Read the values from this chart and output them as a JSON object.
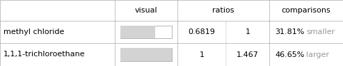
{
  "rows": [
    {
      "name": "methyl chloride",
      "ratio1": "0.6819",
      "ratio2": "1",
      "comparison_pct": "31.81%",
      "comparison_dir": "smaller",
      "bar_fill": 0.6819
    },
    {
      "name": "1,1,1-trichloroethane",
      "ratio1": "1",
      "ratio2": "1.467",
      "comparison_pct": "46.65%",
      "comparison_dir": "larger",
      "bar_fill": 1.0
    }
  ],
  "bar_color": "#d3d3d3",
  "bar_outline": "#999999",
  "grid_color": "#aaaaaa",
  "text_color": "#000000",
  "comparison_word_color": "#999999",
  "font_size": 8.0,
  "header_font_size": 8.0,
  "fig_w": 4.93,
  "fig_h": 0.95,
  "dpi": 100
}
